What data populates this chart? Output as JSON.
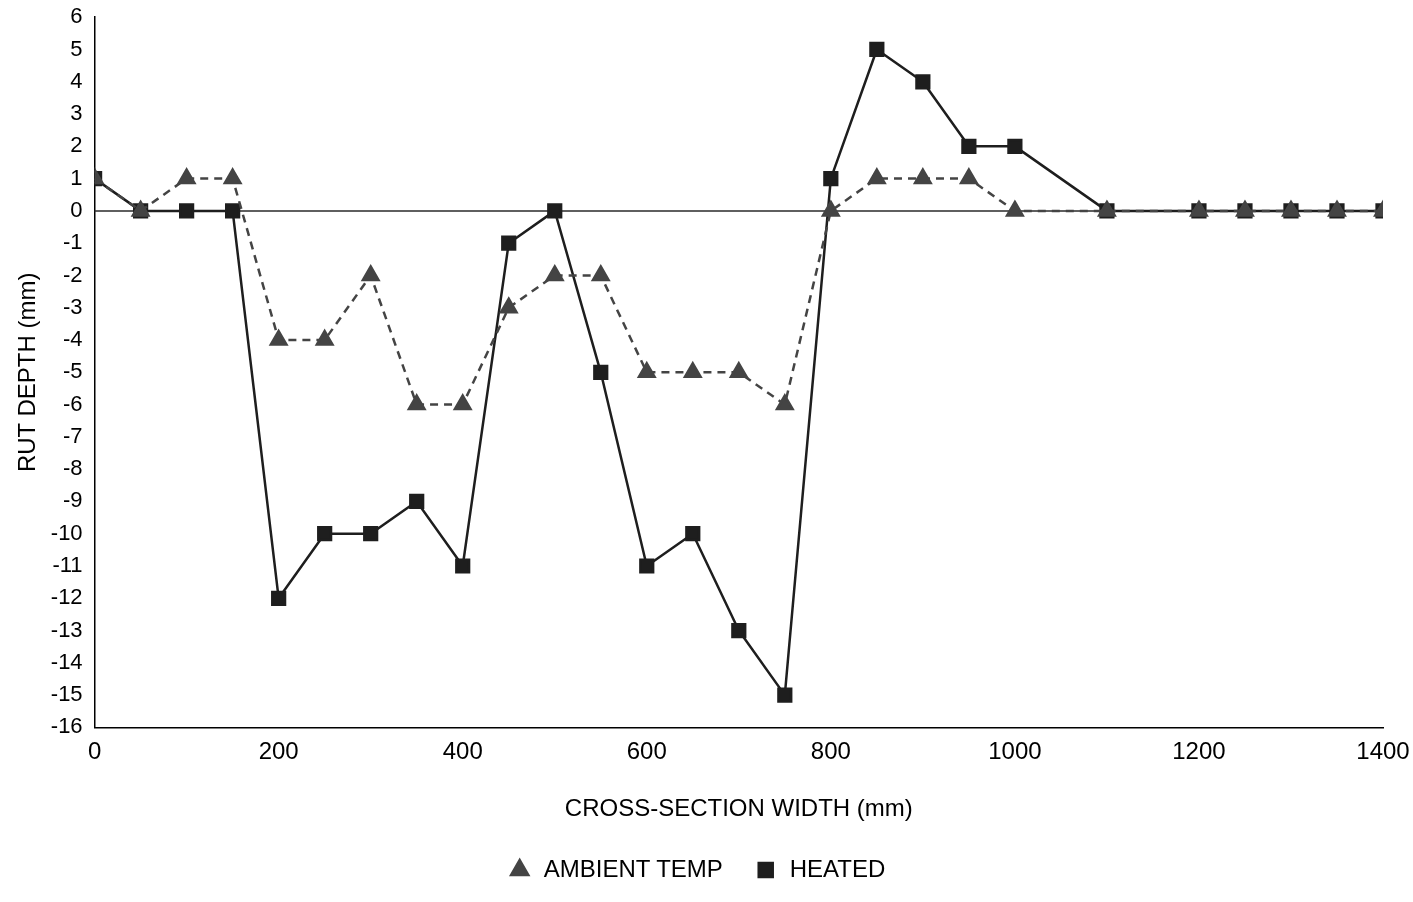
{
  "chart_data": {
    "type": "line",
    "xlabel": "CROSS-SECTION WIDTH (mm)",
    "ylabel": "RUT DEPTH (mm)",
    "x": [
      0,
      50,
      100,
      150,
      200,
      250,
      300,
      350,
      400,
      450,
      500,
      550,
      600,
      650,
      700,
      750,
      800,
      850,
      900,
      950,
      1000,
      1100,
      1200,
      1250,
      1300,
      1350,
      1400
    ],
    "series": [
      {
        "name": "AMBIENT TEMP",
        "color": "#444444",
        "marker": "triangle",
        "line_style": "dashed",
        "values": [
          1,
          0,
          1,
          1,
          -4,
          -4,
          -2,
          -6,
          -6,
          -3,
          -2,
          -2,
          -5,
          -5,
          -5,
          -6,
          0,
          1,
          1,
          1,
          0,
          0,
          0,
          0,
          0,
          0,
          0
        ]
      },
      {
        "name": "HEATED",
        "color": "#1e1e1e",
        "marker": "square",
        "line_style": "solid",
        "values": [
          1,
          0,
          0,
          0,
          -12,
          -10,
          -10,
          -9,
          -11,
          -1,
          0,
          -5,
          -11,
          -10,
          -13,
          -15,
          1,
          5,
          4,
          2,
          2,
          0,
          0,
          0,
          0,
          0,
          0
        ]
      }
    ],
    "xlim": [
      0,
      1400
    ],
    "xticks": [
      0,
      200,
      400,
      600,
      800,
      1000,
      1200,
      1400
    ],
    "ylim": [
      -16,
      6
    ],
    "yticks": [
      -16,
      -15,
      -14,
      -13,
      -12,
      -11,
      -10,
      -9,
      -8,
      -7,
      -6,
      -5,
      -4,
      -3,
      -2,
      -1,
      0,
      1,
      2,
      3,
      4,
      5,
      6
    ],
    "ref_lines": [
      {
        "axis": "y",
        "value": 0,
        "color": "#2a2a2a"
      }
    ],
    "grid": false,
    "legend": "bottom"
  }
}
